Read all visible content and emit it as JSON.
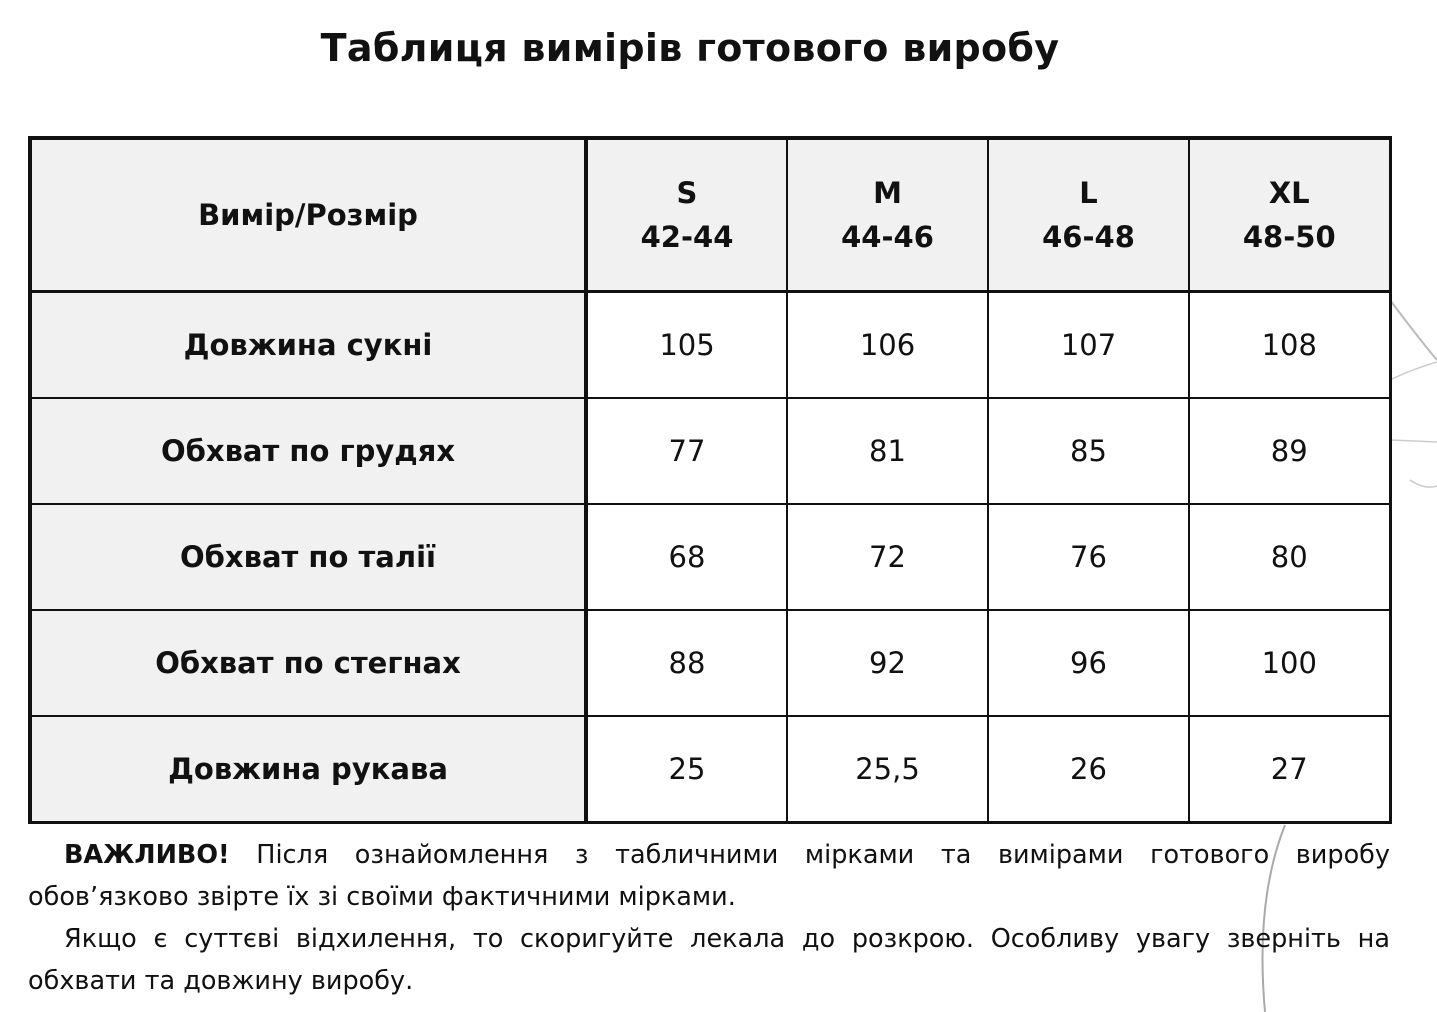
{
  "title": "Таблиця вимірів готового виробу",
  "table": {
    "corner": "Вимір/Розмір",
    "sizes": [
      {
        "size": "S",
        "range": "42-44"
      },
      {
        "size": "M",
        "range": "44-46"
      },
      {
        "size": "L",
        "range": "46-48"
      },
      {
        "size": "XL",
        "range": "48-50"
      }
    ],
    "rows": [
      {
        "name": "Довжина сукні",
        "values": [
          "105",
          "106",
          "107",
          "108"
        ]
      },
      {
        "name": "Обхват по грудях",
        "values": [
          "77",
          "81",
          "85",
          "89"
        ]
      },
      {
        "name": "Обхват по талії",
        "values": [
          "68",
          "72",
          "76",
          "80"
        ]
      },
      {
        "name": "Обхват по стегнах",
        "values": [
          "88",
          "92",
          "96",
          "100"
        ]
      },
      {
        "name": "Довжина рукава",
        "values": [
          "25",
          "25,5",
          "26",
          "27"
        ]
      }
    ]
  },
  "note": {
    "important": "ВАЖЛИВО!",
    "paragraph1": "Після ознайомлення з табличними мірками та вимірами готового виробу обов’язково звірте їх зі своїми фактичними мірками.",
    "paragraph2": "Якщо є суттєві відхилення, то скоригуйте лекала до розкрою. Особливу увагу зверніть на обхвати та довжину виробу."
  }
}
